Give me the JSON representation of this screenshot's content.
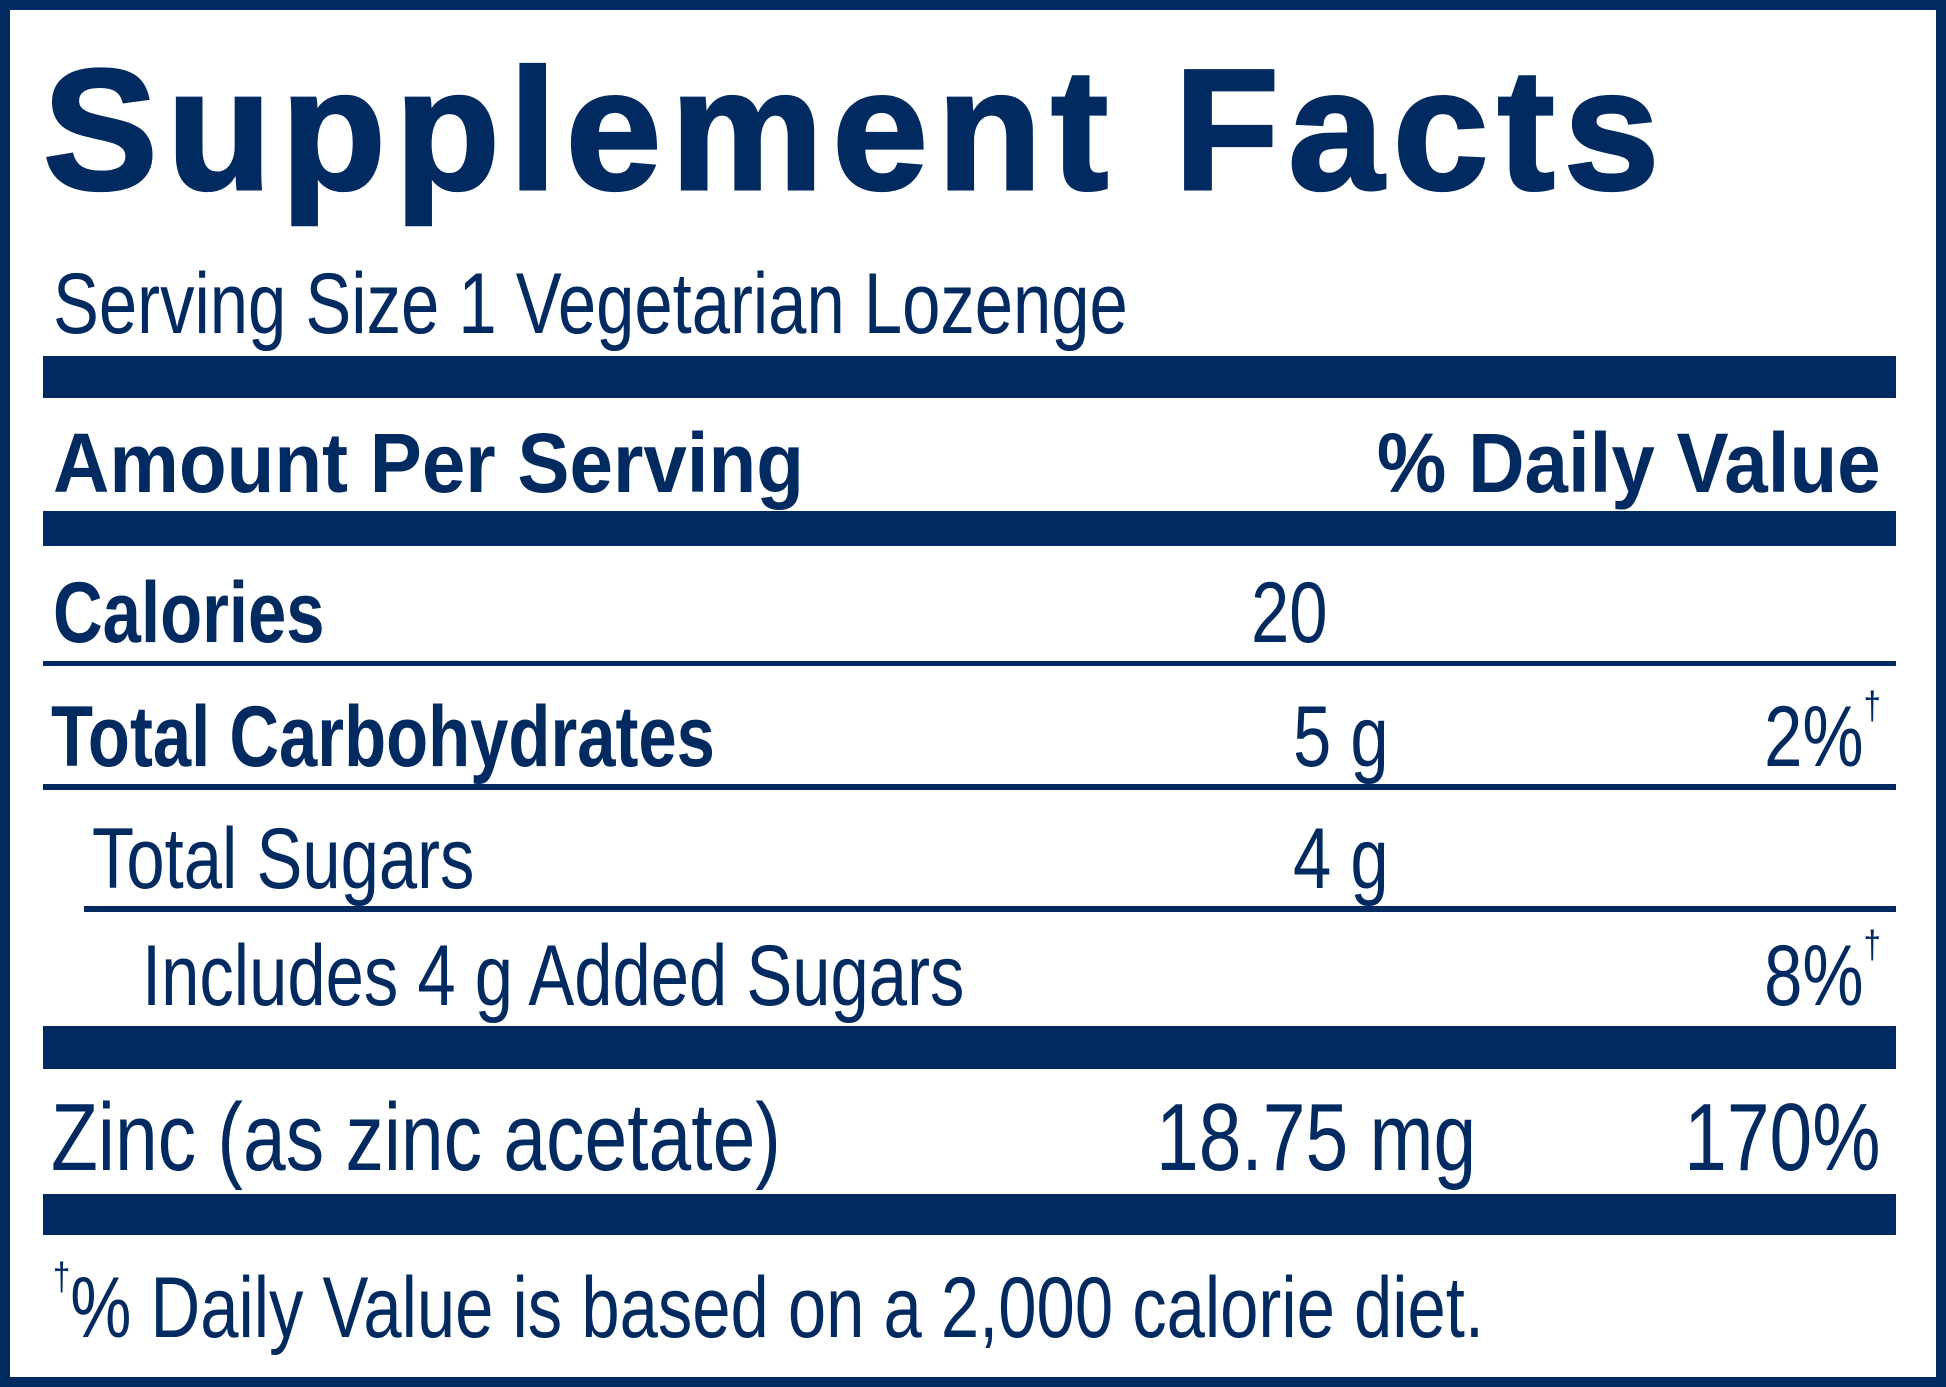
{
  "title": "Supplement Facts",
  "serving_size": "Serving Size 1 Vegetarian Lozenge",
  "header": {
    "left": "Amount Per Serving",
    "right": "% Daily Value"
  },
  "rows": [
    {
      "name": "Calories",
      "amount": "20",
      "dv": ""
    },
    {
      "name": "Total Carbohydrates",
      "amount": "5 g",
      "dv": "2%",
      "dv_mark": "†"
    },
    {
      "name": "Total Sugars",
      "amount": "4 g",
      "dv": ""
    },
    {
      "name": "Includes 4 g Added Sugars",
      "amount": "",
      "dv": "8%",
      "dv_mark": "†"
    },
    {
      "name": "Zinc (as zinc acetate)",
      "amount": "18.75 mg",
      "dv": "170%"
    }
  ],
  "footnote": {
    "mark": "†",
    "text": "% Daily Value is based on a 2,000 calorie diet."
  },
  "colors": {
    "ink": "#012a61",
    "background": "#ffffff"
  }
}
